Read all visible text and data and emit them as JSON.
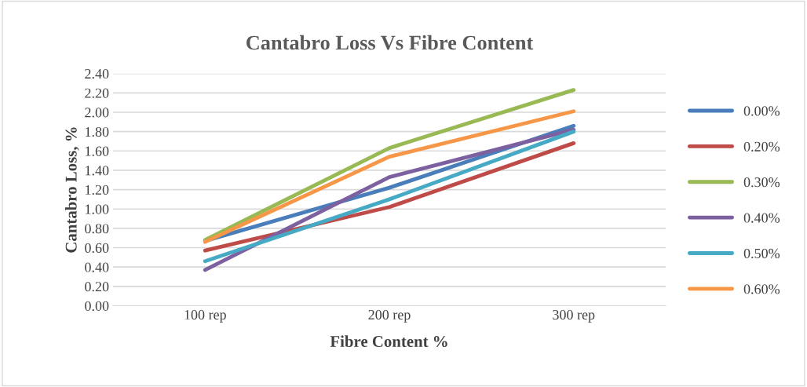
{
  "chart_data": {
    "type": "line",
    "title": "Cantabro Loss Vs Fibre Content",
    "xlabel": "Fibre Content %",
    "ylabel": "Cantabro Loss, %",
    "categories": [
      "100 rep",
      "200 rep",
      "300 rep"
    ],
    "series": [
      {
        "name": "0.00%",
        "color": "#4a7ebb",
        "values": [
          0.67,
          1.22,
          1.86
        ]
      },
      {
        "name": "0.20%",
        "color": "#be4b48",
        "values": [
          0.57,
          1.02,
          1.68
        ]
      },
      {
        "name": "0.30%",
        "color": "#98b954",
        "values": [
          0.68,
          1.63,
          2.23
        ]
      },
      {
        "name": "0.40%",
        "color": "#7d60a0",
        "values": [
          0.37,
          1.33,
          1.82
        ]
      },
      {
        "name": "0.50%",
        "color": "#46aac5",
        "values": [
          0.46,
          1.1,
          1.8
        ]
      },
      {
        "name": "0.60%",
        "color": "#f79646",
        "values": [
          0.66,
          1.54,
          2.01
        ]
      }
    ],
    "ylim": [
      0,
      2.4
    ],
    "yticks": [
      {
        "value": 0,
        "label": "0.00"
      },
      {
        "value": 0.2,
        "label": "0.20"
      },
      {
        "value": 0.4,
        "label": "0.40"
      },
      {
        "value": 0.6,
        "label": "0.60"
      },
      {
        "value": 0.8,
        "label": "0.80"
      },
      {
        "value": 1.0,
        "label": "1.00"
      },
      {
        "value": 1.2,
        "label": "1.20"
      },
      {
        "value": 1.4,
        "label": "1.40"
      },
      {
        "value": 1.6,
        "label": "1.60"
      },
      {
        "value": 1.8,
        "label": "1.80"
      },
      {
        "value": 2.0,
        "label": "2.00"
      },
      {
        "value": 2.2,
        "label": "2.20"
      },
      {
        "value": 2.4,
        "label": "2.40"
      }
    ],
    "grid": "y",
    "legend": "right",
    "marker": "none",
    "line_style": "solid"
  }
}
